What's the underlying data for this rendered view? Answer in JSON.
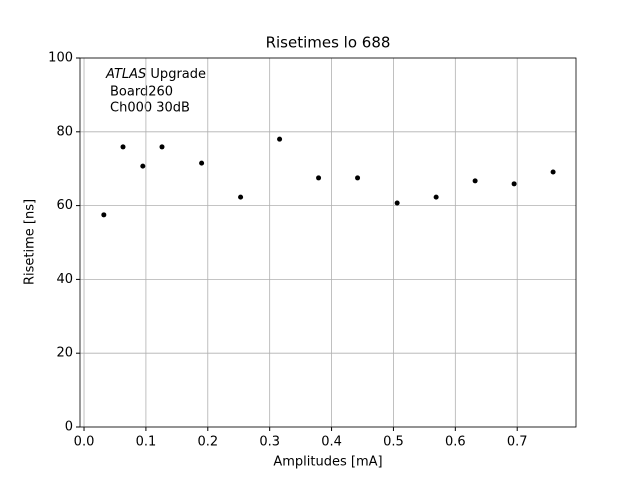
{
  "chart_data": {
    "type": "scatter",
    "title": "Risetimes lo 688",
    "x_label": "Amplitudes [mA]",
    "y_label": "Risetime [ns]",
    "annotation": {
      "emphasis": "ATLAS",
      "lines": [
        "Upgrade",
        "Board260",
        "Ch000 30dB"
      ]
    },
    "color": "#000000",
    "grid": true,
    "x": [
      0.032,
      0.063,
      0.095,
      0.126,
      0.19,
      0.253,
      0.316,
      0.379,
      0.442,
      0.506,
      0.569,
      0.632,
      0.695,
      0.758
    ],
    "values": [
      57.5,
      75.9,
      70.7,
      75.9,
      71.5,
      62.3,
      78.0,
      67.5,
      67.5,
      60.7,
      62.3,
      66.7,
      65.9,
      69.1
    ],
    "xlim": [
      -0.0065,
      0.795
    ],
    "xticks": [
      {
        "value": 0,
        "label": "0.0"
      },
      0.1,
      0.2,
      0.3,
      0.4,
      0.5,
      0.6,
      0.7
    ],
    "ylim": [
      0,
      100
    ],
    "yticks": [
      0,
      20,
      40,
      60,
      80,
      100
    ]
  }
}
